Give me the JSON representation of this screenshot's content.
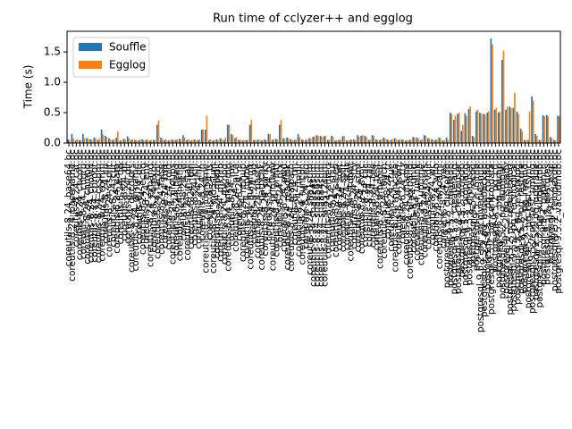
{
  "chart_data": {
    "type": "bar",
    "title": "Run time of cclyzer++ and egglog",
    "ylabel": "Time (s)",
    "categories": [
      "coreutils-8.24_base64.bc",
      "coreutils-8.24_basename.bc",
      "coreutils-8.24_cat.bc",
      "coreutils-8.24_chcon.bc",
      "coreutils-8.24_chgrp.bc",
      "coreutils-8.24_chmod.bc",
      "coreutils-8.24_chown.bc",
      "coreutils-8.24_chroot.bc",
      "coreutils-8.24_cksum.bc",
      "coreutils-8.24_comm.bc",
      "coreutils-8.24_cp.bc",
      "coreutils-8.24_csplit.bc",
      "coreutils-8.24_cut.bc",
      "coreutils-8.24_date.bc",
      "coreutils-8.24_dd.bc",
      "coreutils-8.24_df.bc",
      "coreutils-8.24_dir.bc",
      "coreutils-8.24_dircolors.bc",
      "coreutils-8.24_dirname.bc",
      "coreutils-8.24_du.bc",
      "coreutils-8.24_echo.bc",
      "coreutils-8.24_env.bc",
      "coreutils-8.24_expand.bc",
      "coreutils-8.24_expr.bc",
      "coreutils-8.24_factor.bc",
      "coreutils-8.24_false.bc",
      "coreutils-8.24_fmt.bc",
      "coreutils-8.24_fold.bc",
      "coreutils-8.24_groups.bc",
      "coreutils-8.24_head.bc",
      "coreutils-8.24_hostid.bc",
      "coreutils-8.24_id.bc",
      "coreutils-8.24_install.bc",
      "coreutils-8.24_join.bc",
      "coreutils-8.24_kill.bc",
      "coreutils-8.24_link.bc",
      "coreutils-8.24_ln.bc",
      "coreutils-8.24_logname.bc",
      "coreutils-8.24_ls.bc",
      "coreutils-8.24_md5sum.bc",
      "coreutils-8.24_mkdir.bc",
      "coreutils-8.24_mkfifo.bc",
      "coreutils-8.24_mknod.bc",
      "coreutils-8.24_mktemp.bc",
      "coreutils-8.24_mv.bc",
      "coreutils-8.24_nice.bc",
      "coreutils-8.24_nl.bc",
      "coreutils-8.24_nohup.bc",
      "coreutils-8.24_nproc.bc",
      "coreutils-8.24_numfmt.bc",
      "coreutils-8.24_od.bc",
      "coreutils-8.24_paste.bc",
      "coreutils-8.24_pathchk.bc",
      "coreutils-8.24_pinky.bc",
      "coreutils-8.24_pr.bc",
      "coreutils-8.24_printenv.bc",
      "coreutils-8.24_printf.bc",
      "coreutils-8.24_ptx.bc",
      "coreutils-8.24_pwd.bc",
      "coreutils-8.24_readlink.bc",
      "coreutils-8.24_realpath.bc",
      "coreutils-8.24_rm.bc",
      "coreutils-8.24_rmdir.bc",
      "coreutils-8.24_runcon.bc",
      "coreutils-8.24_seq.bc",
      "coreutils-8.24_sha1sum.bc",
      "coreutils-8.24_sha224sum.bc",
      "coreutils-8.24_sha256sum.bc",
      "coreutils-8.24_sha384sum.bc",
      "coreutils-8.24_sha512sum.bc",
      "coreutils-8.24_shred.bc",
      "coreutils-8.24_shuf.bc",
      "coreutils-8.24_sleep.bc",
      "coreutils-8.24_sort.bc",
      "coreutils-8.24_split.bc",
      "coreutils-8.24_stat.bc",
      "coreutils-8.24_stdbuf.bc",
      "coreutils-8.24_stty.bc",
      "coreutils-8.24_sum.bc",
      "coreutils-8.24_sync.bc",
      "coreutils-8.24_tac.bc",
      "coreutils-8.24_tail.bc",
      "coreutils-8.24_tee.bc",
      "coreutils-8.24_test.bc",
      "coreutils-8.24_timeout.bc",
      "coreutils-8.24_touch.bc",
      "coreutils-8.24_tr.bc",
      "coreutils-8.24_true.bc",
      "coreutils-8.24_truncate.bc",
      "coreutils-8.24_tsort.bc",
      "coreutils-8.24_tty.bc",
      "coreutils-8.24_uname.bc",
      "coreutils-8.24_unexpand.bc",
      "coreutils-8.24_uniq.bc",
      "coreutils-8.24_unlink.bc",
      "coreutils-8.24_uptime.bc",
      "coreutils-8.24_users.bc",
      "coreutils-8.24_vdir.bc",
      "coreutils-8.24_wc.bc",
      "coreutils-8.24_who.bc",
      "coreutils-8.24_whoami.bc",
      "coreutils-8.24_yes.bc",
      "postgresql-9.5.2_clusterdb.bc",
      "postgresql-9.5.2_createdb.bc",
      "postgresql-9.5.2_createlang.bc",
      "postgresql-9.5.2_createuser.bc",
      "postgresql-9.5.2_dropdb.bc",
      "postgresql-9.5.2_droplang.bc",
      "postgresql-9.5.2_dropuser.bc",
      "postgresql-9.5.2_ecpg.bc",
      "postgresql-9.5.2_initdb.bc",
      "postgresql-9.5.2_pg_archivecleanup.bc",
      "postgresql-9.5.2_pg_basebackup.bc",
      "postgresql-9.5.2_pg_config.bc",
      "postgresql-9.5.2_pg_controldata.bc",
      "postgresql-9.5.2_pg_ctl.bc",
      "postgresql-9.5.2_pg_dump.bc",
      "postgresql-9.5.2_pg_dumpall.bc",
      "postgresql-9.5.2_pg_isready.bc",
      "postgresql-9.5.2_pg_receivexlog.bc",
      "postgresql-9.5.2_pg_recvlogical.bc",
      "postgresql-9.5.2_pg_resetxlog.bc",
      "postgresql-9.5.2_pg_restore.bc",
      "postgresql-9.5.2_pg_rewind.bc",
      "postgresql-9.5.2_pg_test_fsync.bc",
      "postgresql-9.5.2_pg_test_timing.bc",
      "postgresql-9.5.2_pg_upgrade.bc",
      "postgresql-9.5.2_pg_xlogdump.bc",
      "postgresql-9.5.2_pgbench.bc",
      "postgresql-9.5.2_postgres.bc",
      "postgresql-9.5.2_psql.bc",
      "postgresql-9.5.2_reindexdb.bc",
      "postgresql-9.5.2_vacuumdb.bc"
    ],
    "series": [
      {
        "name": "Souffle",
        "color": "#1f77b4",
        "values": [
          0.06,
          0.15,
          0.04,
          0.05,
          0.15,
          0.08,
          0.06,
          0.09,
          0.05,
          0.22,
          0.12,
          0.08,
          0.05,
          0.09,
          0.04,
          0.07,
          0.11,
          0.05,
          0.05,
          0.04,
          0.06,
          0.05,
          0.04,
          0.05,
          0.3,
          0.09,
          0.05,
          0.04,
          0.06,
          0.05,
          0.07,
          0.13,
          0.05,
          0.04,
          0.06,
          0.05,
          0.22,
          0.22,
          0.05,
          0.04,
          0.06,
          0.08,
          0.05,
          0.3,
          0.15,
          0.08,
          0.05,
          0.04,
          0.05,
          0.3,
          0.05,
          0.05,
          0.04,
          0.06,
          0.15,
          0.05,
          0.07,
          0.3,
          0.08,
          0.09,
          0.06,
          0.05,
          0.15,
          0.06,
          0.05,
          0.08,
          0.1,
          0.13,
          0.12,
          0.11,
          0.05,
          0.12,
          0.04,
          0.05,
          0.11,
          0.04,
          0.05,
          0.06,
          0.13,
          0.12,
          0.12,
          0.05,
          0.13,
          0.06,
          0.05,
          0.09,
          0.06,
          0.05,
          0.08,
          0.05,
          0.06,
          0.04,
          0.05,
          0.1,
          0.09,
          0.05,
          0.13,
          0.08,
          0.06,
          0.05,
          0.09,
          0.04,
          0.09,
          0.5,
          0.38,
          0.48,
          0.2,
          0.49,
          0.56,
          0.12,
          0.52,
          0.5,
          0.48,
          0.5,
          1.72,
          0.55,
          0.5,
          1.37,
          0.55,
          0.6,
          0.58,
          0.52,
          0.24,
          0.05,
          0.05,
          0.77,
          0.15,
          0.05,
          0.46,
          0.46,
          0.1,
          0.05,
          0.45
        ]
      },
      {
        "name": "Egglog",
        "color": "#ff7f0e",
        "values": [
          0.04,
          0.08,
          0.06,
          0.05,
          0.08,
          0.07,
          0.05,
          0.08,
          0.07,
          0.14,
          0.1,
          0.06,
          0.06,
          0.19,
          0.05,
          0.06,
          0.08,
          0.06,
          0.05,
          0.06,
          0.05,
          0.06,
          0.05,
          0.05,
          0.37,
          0.07,
          0.06,
          0.05,
          0.05,
          0.06,
          0.06,
          0.09,
          0.06,
          0.05,
          0.05,
          0.06,
          0.22,
          0.45,
          0.06,
          0.05,
          0.05,
          0.07,
          0.09,
          0.3,
          0.13,
          0.1,
          0.06,
          0.05,
          0.05,
          0.38,
          0.05,
          0.06,
          0.05,
          0.05,
          0.15,
          0.06,
          0.06,
          0.38,
          0.07,
          0.08,
          0.05,
          0.06,
          0.1,
          0.05,
          0.06,
          0.07,
          0.11,
          0.12,
          0.1,
          0.12,
          0.06,
          0.1,
          0.05,
          0.06,
          0.12,
          0.05,
          0.06,
          0.05,
          0.11,
          0.13,
          0.1,
          0.06,
          0.12,
          0.05,
          0.06,
          0.08,
          0.05,
          0.06,
          0.07,
          0.06,
          0.05,
          0.05,
          0.06,
          0.09,
          0.08,
          0.06,
          0.12,
          0.07,
          0.05,
          0.06,
          0.08,
          0.05,
          0.05,
          0.48,
          0.45,
          0.5,
          0.3,
          0.45,
          0.6,
          0.1,
          0.55,
          0.48,
          0.47,
          0.52,
          1.62,
          0.58,
          0.52,
          1.52,
          0.6,
          0.58,
          0.83,
          0.48,
          0.2,
          0.05,
          0.52,
          0.7,
          0.12,
          0.05,
          0.44,
          0.44,
          0.08,
          0.05,
          0.44
        ]
      }
    ],
    "ylim": [
      0,
      1.84
    ],
    "yticks": [
      {
        "value": 0,
        "label": "0.0"
      },
      0.5,
      {
        "value": 1,
        "label": "1.0"
      },
      1.5
    ],
    "legend": "upper left"
  }
}
